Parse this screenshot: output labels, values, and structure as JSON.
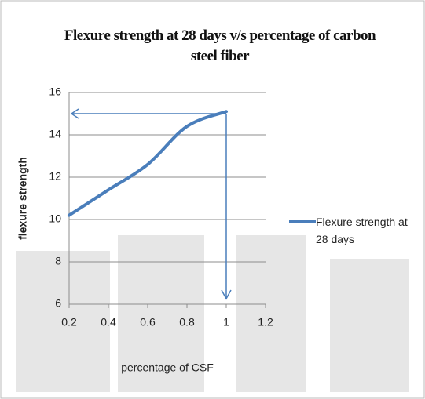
{
  "chart_data": {
    "type": "line",
    "title": "Flexure strength at 28 days v/s percentage of carbon steel fiber",
    "x_label": "percentage of CSF",
    "y_label": "flexure strength",
    "x": [
      0.2,
      0.4,
      0.6,
      0.8,
      1.0
    ],
    "series": [
      {
        "name": "Flexure strength at 28 days",
        "color": "#4a7ebb",
        "values": [
          10.2,
          11.4,
          12.6,
          14.4,
          15.1
        ]
      }
    ],
    "xlim": [
      0.2,
      1.2
    ],
    "xticks": [
      0.2,
      0.4,
      0.6,
      0.8,
      1,
      1.2
    ],
    "ylim": [
      6,
      16
    ],
    "yticks": [
      6,
      8,
      10,
      12,
      14,
      16
    ],
    "grid": true,
    "legend": "right"
  }
}
